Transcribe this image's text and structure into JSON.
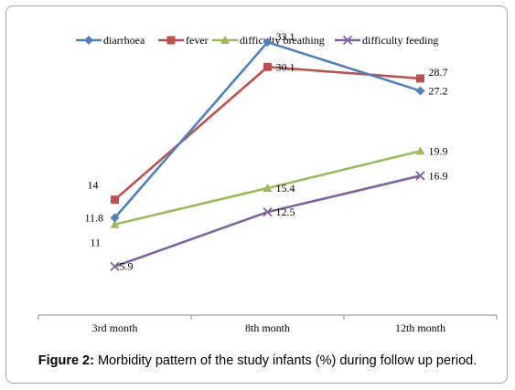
{
  "chart_data": {
    "type": "line",
    "categories": [
      "3rd month",
      "8th month",
      "12th month"
    ],
    "ylim": [
      0,
      36
    ],
    "grid": false,
    "legend_position": "top",
    "series": [
      {
        "name": "diarrhoea",
        "values": [
          11.8,
          33.1,
          27.2
        ],
        "labels": [
          "11.8",
          "33.1",
          "27.2"
        ],
        "color": "#4f81bd",
        "marker": "diamond"
      },
      {
        "name": "fever",
        "values": [
          14,
          30.1,
          28.7
        ],
        "labels": [
          "14",
          "30.1",
          "28.7"
        ],
        "color": "#c0504d",
        "marker": "square"
      },
      {
        "name": "difficulty breathing",
        "values": [
          11,
          15.4,
          19.9
        ],
        "labels": [
          "11",
          "15.4",
          "19.9"
        ],
        "color": "#9bbb59",
        "marker": "triangle"
      },
      {
        "name": "difficulty feeding",
        "values": [
          5.9,
          12.5,
          16.9
        ],
        "labels": [
          "5.9",
          "12.5",
          "16.9"
        ],
        "color": "#8064a2",
        "marker": "x"
      }
    ]
  },
  "caption": {
    "label": "Figure 2:",
    "text": " Morbidity pattern of the study infants (%) during follow up period."
  }
}
